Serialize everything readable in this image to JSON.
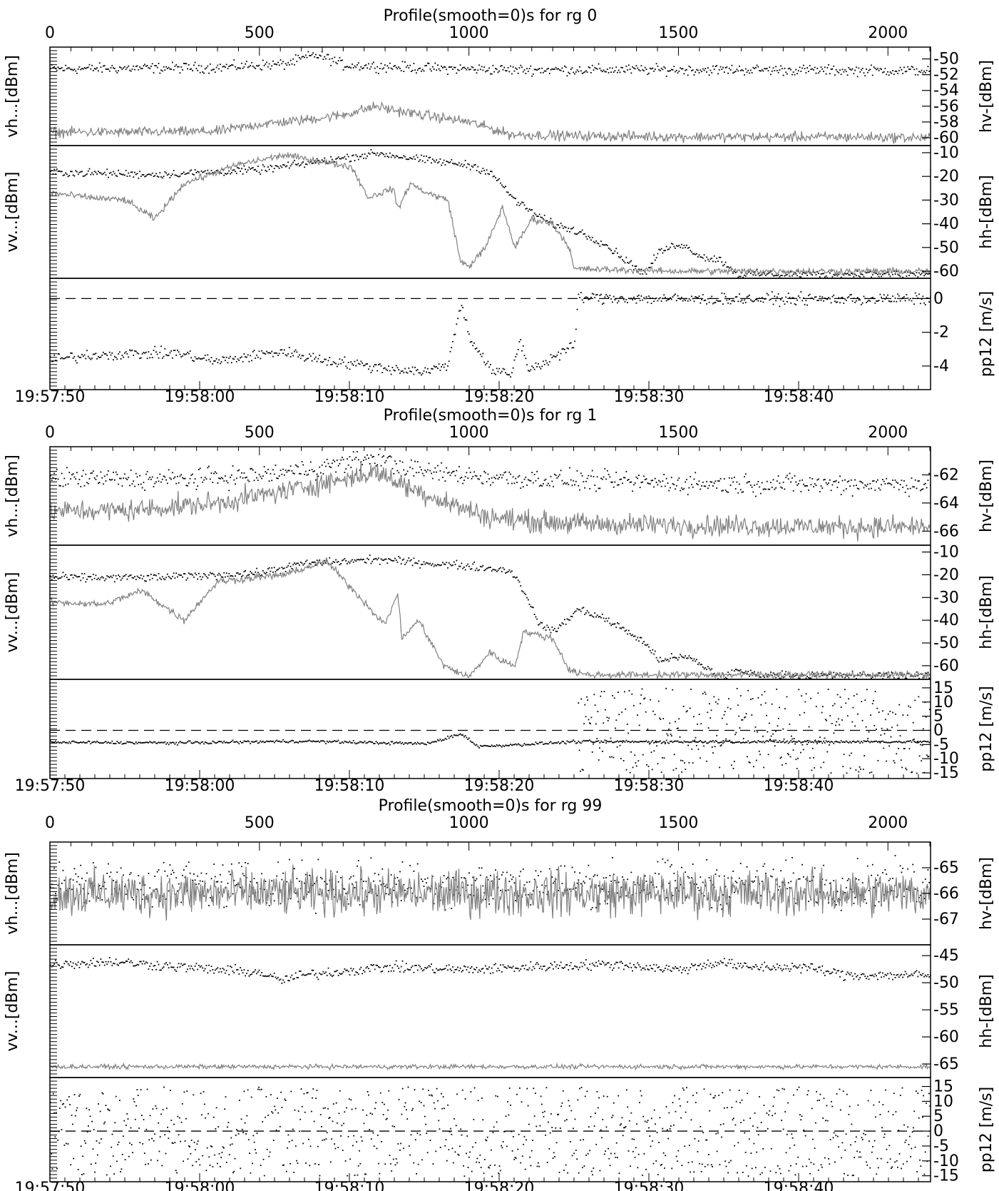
{
  "figure": {
    "title_prefix": "Profile(smooth=0)s for rg",
    "x_top_axis": {
      "ticks": [
        0,
        500,
        1000,
        1500,
        2000
      ],
      "range": [
        0,
        2100
      ]
    },
    "x_bottom_axis": {
      "ticks": [
        "19:57:50",
        "19:58:00",
        "19:58:10",
        "19:58:20",
        "19:58:30",
        "19:58:40"
      ]
    },
    "colors": {
      "dots": "#000000",
      "line": "#808080",
      "axes": "#000000"
    }
  },
  "chart_data": [
    {
      "type": "scatter",
      "title": "Profile(smooth=0)s for rg 0",
      "rg": 0,
      "panels": [
        {
          "id": "power-cross",
          "left_label": "vh...[dBm]",
          "right_label": "hv-[dBm]",
          "ylim": [
            -61,
            -48.5
          ],
          "right_ticks": [
            "-50",
            "-52",
            "-54",
            "-56",
            "-58",
            "-60"
          ],
          "series": [
            {
              "style": "dots",
              "x": [
                0,
                200,
                400,
                500,
                560,
                630,
                660,
                700,
                900,
                1100,
                1300,
                1500,
                1700,
                1900,
                2100
              ],
              "y": [
                -51.2,
                -51.1,
                -51,
                -50.7,
                -50.6,
                -49.4,
                -49.8,
                -50.7,
                -51.1,
                -51.3,
                -51.3,
                -51.3,
                -51.3,
                -51.4,
                -51.4
              ],
              "noise": 0.55
            },
            {
              "style": "line",
              "x": [
                0,
                200,
                400,
                500,
                600,
                700,
                780,
                820,
                900,
                1000,
                1050,
                1100,
                1300,
                1600,
                1900,
                2100
              ],
              "y": [
                -59.3,
                -59.3,
                -59.2,
                -58.3,
                -57.8,
                -57.1,
                -56,
                -56.5,
                -57.2,
                -58,
                -58.8,
                -59.6,
                -59.8,
                -59.9,
                -59.9,
                -60
              ],
              "noise": 0.55
            }
          ]
        },
        {
          "id": "power-co",
          "left_label": "vv...[dBm]",
          "right_label": "hh-[dBm]",
          "ylim": [
            -63,
            -7
          ],
          "right_ticks": [
            "-10",
            "-20",
            "-30",
            "-40",
            "-50",
            "-60"
          ],
          "series": [
            {
              "style": "dots",
              "x": [
                0,
                250,
                500,
                700,
                780,
                900,
                1000,
                1050,
                1080,
                1110,
                1150,
                1200,
                1260,
                1320,
                1380,
                1420,
                1450,
                1500,
                1560,
                1600,
                1640,
                1700,
                1900,
                2100
              ],
              "y": [
                -18,
                -19,
                -17,
                -12,
                -10,
                -13,
                -15,
                -18,
                -24,
                -30,
                -35,
                -40,
                -43,
                -48,
                -56,
                -61,
                -52,
                -48,
                -54,
                -55,
                -61,
                -61,
                -61,
                -61
              ],
              "noise": 1.4
            },
            {
              "style": "line",
              "x": [
                0,
                100,
                180,
                250,
                320,
                450,
                560,
                720,
                760,
                820,
                830,
                860,
                900,
                950,
                980,
                1000,
                1040,
                1080,
                1110,
                1150,
                1200,
                1240,
                1250,
                1500,
                1800,
                2100
              ],
              "y": [
                -27,
                -29,
                -30,
                -38,
                -23,
                -15,
                -11,
                -16,
                -29,
                -25,
                -34,
                -23,
                -27,
                -30,
                -56,
                -58,
                -50,
                -33,
                -50,
                -38,
                -40,
                -50,
                -59,
                -60,
                -60,
                -60
              ],
              "noise": 1.2
            }
          ]
        },
        {
          "id": "doppler",
          "left_label": "",
          "right_label": "pp12 [m/s]",
          "ylim": [
            -5.4,
            1.2
          ],
          "right_ticks": [
            "0",
            "-2",
            "-4"
          ],
          "right_tick_values": [
            0,
            -2,
            -4
          ],
          "zero_line": 0,
          "series": [
            {
              "style": "dots",
              "x": [
                0,
                100,
                300,
                400,
                550,
                650,
                800,
                900,
                950,
                980,
                1000,
                1050,
                1100,
                1120,
                1140,
                1170,
                1230,
                1250,
                1260,
                1500,
                1800,
                2100
              ],
              "y": [
                -3.6,
                -3.3,
                -3.2,
                -3.7,
                -3.1,
                -3.6,
                -4.1,
                -4.3,
                -3.8,
                -0.2,
                -2.2,
                -4.2,
                -4.5,
                -2.4,
                -4.1,
                -3.9,
                -3,
                -2.8,
                0.1,
                0,
                0,
                0
              ],
              "noise": 0.28
            }
          ]
        }
      ]
    },
    {
      "type": "scatter",
      "title": "Profile(smooth=0)s for rg 1",
      "rg": 1,
      "panels": [
        {
          "id": "power-cross",
          "left_label": "vh...[dBm]",
          "right_label": "hv-[dBm]",
          "ylim": [
            -67,
            -60
          ],
          "right_ticks": [
            "-62",
            "-64",
            "-66"
          ],
          "series": [
            {
              "style": "dots",
              "x": [
                0,
                300,
                500,
                650,
                780,
                850,
                1000,
                1100,
                1300,
                1600,
                1900,
                2100
              ],
              "y": [
                -62.2,
                -62.3,
                -62,
                -61.4,
                -60.7,
                -61.6,
                -62,
                -62.2,
                -62.4,
                -62.6,
                -62.6,
                -62.6
              ],
              "noise": 0.6
            },
            {
              "style": "line",
              "x": [
                0,
                200,
                400,
                550,
                700,
                780,
                850,
                950,
                1050,
                1150,
                1300,
                1600,
                1900,
                2100
              ],
              "y": [
                -64.6,
                -64.5,
                -64,
                -63.2,
                -62.3,
                -61.8,
                -62.8,
                -64,
                -65,
                -65.3,
                -65.5,
                -65.6,
                -65.7,
                -65.7
              ],
              "noise": 0.65
            }
          ]
        },
        {
          "id": "power-co",
          "left_label": "vv...[dBm]",
          "right_label": "hh-[dBm]",
          "ylim": [
            -66,
            -7
          ],
          "right_ticks": [
            "-10",
            "-20",
            "-30",
            "-40",
            "-50",
            "-60"
          ],
          "series": [
            {
              "style": "dots",
              "x": [
                0,
                250,
                500,
                600,
                780,
                1000,
                1100,
                1140,
                1160,
                1200,
                1260,
                1310,
                1380,
                1420,
                1450,
                1520,
                1560,
                1600,
                1640,
                1700,
                2100
              ],
              "y": [
                -21,
                -21,
                -19,
                -15,
                -13,
                -16,
                -18,
                -30,
                -40,
                -45,
                -35,
                -38,
                -45,
                -50,
                -57,
                -56,
                -60,
                -65,
                -62,
                -64,
                -64
              ],
              "noise": 1.5
            },
            {
              "style": "line",
              "x": [
                0,
                130,
                220,
                320,
                400,
                560,
                660,
                730,
                800,
                830,
                840,
                880,
                940,
                1000,
                1050,
                1080,
                1110,
                1130,
                1200,
                1240,
                1280,
                1500,
                1800,
                2100
              ],
              "y": [
                -32,
                -33,
                -27,
                -40,
                -23,
                -20,
                -14,
                -28,
                -42,
                -28,
                -48,
                -40,
                -60,
                -65,
                -54,
                -58,
                -60,
                -45,
                -48,
                -62,
                -64,
                -64,
                -64,
                -64
              ],
              "noise": 1.3
            }
          ]
        },
        {
          "id": "doppler",
          "left_label": "",
          "right_label": "pp12 [m/s]",
          "ylim": [
            -17,
            18
          ],
          "right_ticks": [
            "15",
            "10",
            "5",
            "0",
            "-5",
            "-10",
            "-15"
          ],
          "right_tick_values": [
            15,
            10,
            5,
            0,
            -5,
            -10,
            -15
          ],
          "zero_line": 0,
          "series": [
            {
              "style": "dots",
              "x": [
                0,
                300,
                600,
                900,
                980,
                1000,
                1020,
                1200,
                1250
              ],
              "y": [
                -4,
                -4.2,
                -3.6,
                -4.5,
                -1,
                -3,
                -5.5,
                -4.2,
                -3.8
              ],
              "noise": 0.45
            },
            {
              "style": "scatter",
              "x": [
                1260,
                2100
              ],
              "y": [
                -15,
                15
              ]
            }
          ]
        }
      ]
    },
    {
      "type": "scatter",
      "title": "Profile(smooth=0)s for rg 99",
      "rg": 99,
      "panels": [
        {
          "id": "power-cross",
          "left_label": "vh...[dBm]",
          "right_label": "hv-[dBm]",
          "ylim": [
            -68,
            -64
          ],
          "right_ticks": [
            "-65",
            "-66",
            "-67"
          ],
          "right_tick_values": [
            -65,
            -66,
            -67
          ],
          "series": [
            {
              "style": "dots",
              "x": [
                0,
                2100
              ],
              "y": [
                -65.6,
                -65.6
              ],
              "noise": 0.75
            },
            {
              "style": "line",
              "x": [
                0,
                2100
              ],
              "y": [
                -66,
                -66
              ],
              "noise": 0.75
            }
          ]
        },
        {
          "id": "power-co",
          "left_label": "vv...[dBm]",
          "right_label": "hh-[dBm]",
          "ylim": [
            -67.5,
            -43
          ],
          "right_ticks": [
            "-45",
            "-50",
            "-55",
            "-60",
            "-65"
          ],
          "right_tick_values": [
            -45,
            -50,
            -55,
            -60,
            -65
          ],
          "series": [
            {
              "style": "dots",
              "x": [
                0,
                150,
                400,
                500,
                550,
                600,
                800,
                1000,
                1200,
                1350,
                1500,
                1600,
                1650,
                1800,
                1900,
                2100
              ],
              "y": [
                -46.5,
                -46,
                -47.5,
                -48,
                -49.5,
                -48.5,
                -47,
                -47.5,
                -46.8,
                -46.5,
                -47.5,
                -46,
                -47,
                -47,
                -48.5,
                -48.5
              ],
              "noise": 0.8
            },
            {
              "style": "line",
              "x": [
                0,
                2100
              ],
              "y": [
                -65.5,
                -65.5
              ],
              "noise": 0.35
            }
          ]
        },
        {
          "id": "doppler",
          "left_label": "",
          "right_label": "pp12 [m/s]",
          "ylim": [
            -17,
            18
          ],
          "right_ticks": [
            "15",
            "10",
            "5",
            "0",
            "-5",
            "-10",
            "-15"
          ],
          "right_tick_values": [
            15,
            10,
            5,
            0,
            -5,
            -10,
            -15
          ],
          "zero_line": 0,
          "series": [
            {
              "style": "scatter",
              "x": [
                0,
                2100
              ],
              "y": [
                -15,
                15
              ]
            }
          ]
        }
      ]
    }
  ]
}
